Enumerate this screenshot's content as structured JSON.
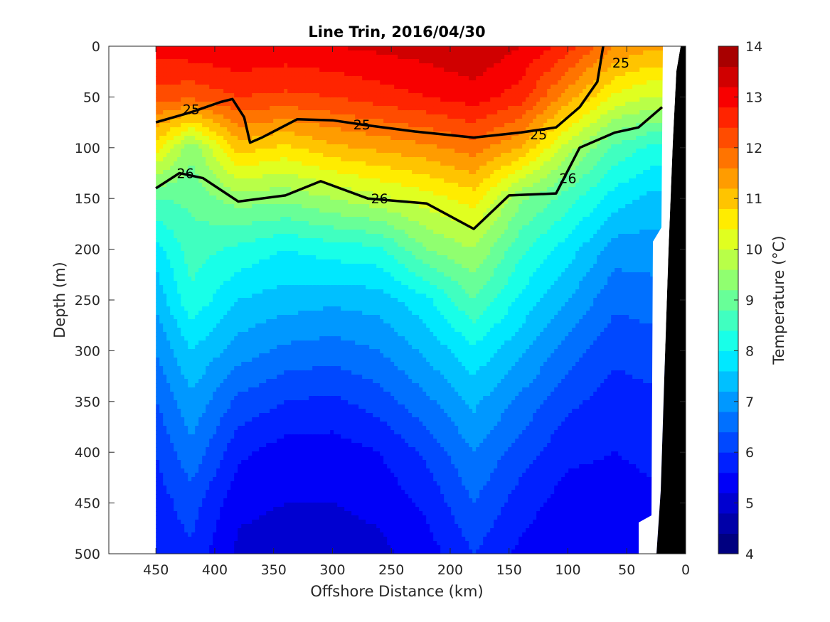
{
  "chart_data": {
    "type": "heatmap",
    "title": "Line Trin, 2016/04/30",
    "xlabel": "Offshore Distance (km)",
    "ylabel": "Depth (m)",
    "xlim": [
      490,
      0
    ],
    "ylim": [
      0,
      500
    ],
    "x_ticks": [
      "450",
      "400",
      "350",
      "300",
      "250",
      "200",
      "150",
      "100",
      "50",
      "0"
    ],
    "x_tick_values": [
      450,
      400,
      350,
      300,
      250,
      200,
      150,
      100,
      50,
      0
    ],
    "y_ticks": [
      "0",
      "50",
      "100",
      "150",
      "200",
      "250",
      "300",
      "350",
      "400",
      "450",
      "500"
    ],
    "y_tick_values": [
      0,
      50,
      100,
      150,
      200,
      250,
      300,
      350,
      400,
      450,
      500
    ],
    "data_x_range": [
      450,
      20
    ],
    "colorbar": {
      "label": "Temperature (°C)",
      "range": [
        4,
        14
      ],
      "tick_labels": [
        "4",
        "5",
        "6",
        "7",
        "8",
        "9",
        "10",
        "11",
        "12",
        "13",
        "14"
      ],
      "tick_values": [
        4,
        5,
        6,
        7,
        8,
        9,
        10,
        11,
        12,
        13,
        14
      ],
      "levels": [
        4,
        4.5,
        5,
        5.5,
        6,
        6.5,
        7,
        7.5,
        8,
        8.5,
        9,
        9.5,
        10,
        10.5,
        11,
        11.5,
        12,
        12.5,
        13,
        13.5,
        14
      ],
      "colors": [
        "#000080",
        "#0000a8",
        "#0000d0",
        "#0000f8",
        "#0020ff",
        "#0048ff",
        "#0070ff",
        "#0098ff",
        "#00c0ff",
        "#00e8ff",
        "#18ffe8",
        "#40ffc0",
        "#68ff98",
        "#90ff70",
        "#b8ff48",
        "#e0ff20",
        "#ffec00",
        "#ffc400",
        "#ff9c00",
        "#ff7400",
        "#ff4c00",
        "#ff2400",
        "#f80000",
        "#d00000",
        "#a80000"
      ]
    },
    "temperature_profiles": [
      {
        "x": 450,
        "depths": [
          0,
          50,
          100,
          150,
          200,
          250,
          300,
          350,
          400,
          450,
          500
        ],
        "values": [
          13.0,
          12.2,
          10.6,
          8.8,
          7.8,
          7.3,
          6.8,
          6.4,
          6.0,
          5.8,
          5.8
        ]
      },
      {
        "x": 420,
        "depths": [
          0,
          50,
          100,
          150,
          200,
          250,
          300,
          350,
          400,
          450,
          500
        ],
        "values": [
          13.1,
          12.1,
          9.3,
          8.9,
          8.6,
          8.3,
          7.6,
          7.1,
          6.7,
          6.2,
          5.9
        ]
      },
      {
        "x": 380,
        "depths": [
          0,
          50,
          100,
          150,
          200,
          250,
          300,
          350,
          400,
          450,
          500
        ],
        "values": [
          13.2,
          12.4,
          11.0,
          9.4,
          8.3,
          7.6,
          7.0,
          6.3,
          5.7,
          5.3,
          5.1
        ]
      },
      {
        "x": 340,
        "depths": [
          0,
          50,
          100,
          150,
          200,
          250,
          300,
          350,
          400,
          450,
          500
        ],
        "values": [
          13.1,
          12.3,
          10.7,
          9.3,
          8.0,
          7.4,
          6.7,
          6.0,
          5.4,
          5.2,
          5.0
        ]
      },
      {
        "x": 300,
        "depths": [
          0,
          50,
          100,
          150,
          200,
          250,
          300,
          350,
          400,
          450,
          500
        ],
        "values": [
          13.2,
          12.4,
          11.1,
          9.6,
          8.2,
          7.3,
          6.6,
          5.9,
          5.4,
          5.2,
          5.0
        ]
      },
      {
        "x": 260,
        "depths": [
          0,
          50,
          100,
          150,
          200,
          250,
          300,
          350,
          400,
          450,
          500
        ],
        "values": [
          13.3,
          12.6,
          11.3,
          9.9,
          8.3,
          7.4,
          6.8,
          6.2,
          5.6,
          5.3,
          5.1
        ]
      },
      {
        "x": 220,
        "depths": [
          0,
          50,
          100,
          150,
          200,
          250,
          300,
          350,
          400,
          450,
          500
        ],
        "values": [
          13.4,
          12.8,
          11.5,
          10.2,
          9.2,
          7.9,
          7.3,
          6.7,
          6.1,
          5.7,
          5.4
        ]
      },
      {
        "x": 180,
        "depths": [
          0,
          50,
          100,
          150,
          200,
          250,
          300,
          350,
          400,
          450,
          500
        ],
        "values": [
          13.6,
          13.0,
          11.8,
          10.6,
          9.6,
          8.8,
          7.9,
          7.3,
          6.8,
          6.4,
          6.0
        ]
      },
      {
        "x": 140,
        "depths": [
          0,
          50,
          100,
          150,
          200,
          250,
          300,
          350,
          400,
          450,
          500
        ],
        "values": [
          13.2,
          12.6,
          11.2,
          9.3,
          8.5,
          7.9,
          7.3,
          6.7,
          6.2,
          5.8,
          5.5
        ]
      },
      {
        "x": 100,
        "depths": [
          0,
          50,
          100,
          150,
          200,
          250,
          300,
          350,
          400,
          450,
          500
        ],
        "values": [
          12.6,
          11.4,
          9.8,
          8.6,
          7.8,
          7.2,
          6.6,
          6.1,
          5.7,
          5.4,
          5.2
        ]
      },
      {
        "x": 60,
        "depths": [
          0,
          50,
          100,
          150,
          200,
          250,
          300,
          350,
          400,
          450,
          500
        ],
        "values": [
          11.6,
          10.3,
          8.7,
          7.8,
          7.0,
          6.5,
          6.1,
          5.8,
          5.6,
          5.4,
          5.2
        ]
      },
      {
        "x": 30,
        "depths": [
          0,
          50,
          100,
          150,
          200,
          250,
          300,
          350,
          400,
          450,
          500
        ],
        "values": [
          11.3,
          10.0,
          8.3,
          7.5,
          7.0,
          6.6,
          6.2,
          5.9,
          5.7,
          5.5,
          5.3
        ]
      }
    ],
    "contours": [
      {
        "label": "25",
        "depth_by_x": [
          [
            450,
            75
          ],
          [
            420,
            65
          ],
          [
            395,
            55
          ],
          [
            385,
            52
          ],
          [
            375,
            70
          ],
          [
            370,
            95
          ],
          [
            360,
            90
          ],
          [
            330,
            72
          ],
          [
            300,
            73
          ],
          [
            270,
            78
          ],
          [
            230,
            84
          ],
          [
            180,
            90
          ],
          [
            140,
            85
          ],
          [
            110,
            80
          ],
          [
            90,
            60
          ],
          [
            75,
            35
          ],
          [
            70,
            0
          ]
        ]
      },
      {
        "label": "26",
        "depth_by_x": [
          [
            450,
            140
          ],
          [
            430,
            125
          ],
          [
            410,
            130
          ],
          [
            380,
            153
          ],
          [
            340,
            147
          ],
          [
            310,
            133
          ],
          [
            270,
            150
          ],
          [
            220,
            155
          ],
          [
            180,
            180
          ],
          [
            150,
            147
          ],
          [
            110,
            145
          ],
          [
            90,
            100
          ],
          [
            60,
            85
          ],
          [
            40,
            80
          ],
          [
            20,
            60
          ]
        ]
      }
    ],
    "contour_label_positions": [
      {
        "text": "25",
        "x": 420,
        "depth": 62
      },
      {
        "text": "25",
        "x": 275,
        "depth": 77
      },
      {
        "text": "25",
        "x": 125,
        "depth": 87
      },
      {
        "text": "25",
        "x": 55,
        "depth": 16
      },
      {
        "text": "26",
        "x": 425,
        "depth": 125
      },
      {
        "text": "26",
        "x": 260,
        "depth": 150
      },
      {
        "text": "26",
        "x": 100,
        "depth": 130
      }
    ]
  }
}
